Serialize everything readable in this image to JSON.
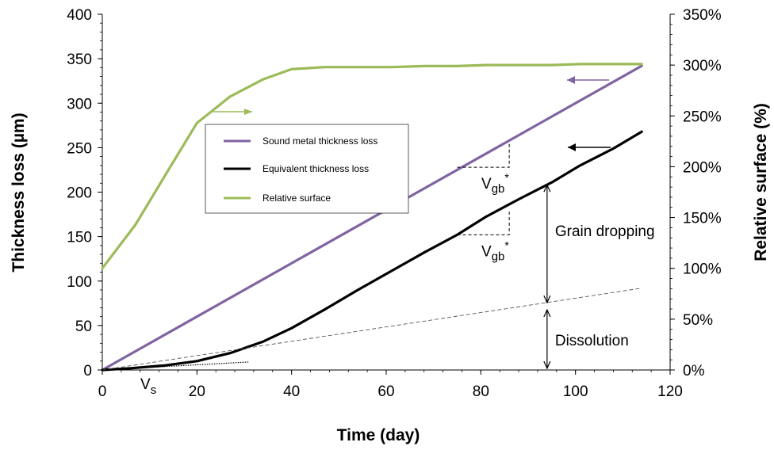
{
  "chart_data": {
    "type": "line",
    "xlabel": "Time (day)",
    "ylabel_left": "Thickness loss (µm)",
    "ylabel_right": "Relative surface (%)",
    "xlim": [
      0,
      120
    ],
    "ylim_left": [
      0,
      400
    ],
    "ylim_right": [
      0,
      350
    ],
    "x_ticks": [
      0,
      20,
      40,
      60,
      80,
      100,
      120
    ],
    "y_ticks_left": [
      0,
      50,
      100,
      150,
      200,
      250,
      300,
      350,
      400
    ],
    "y_ticks_right": [
      "0%",
      "50%",
      "100%",
      "150%",
      "200%",
      "250%",
      "300%",
      "350%"
    ],
    "grid": false,
    "legend_position": "center-left",
    "series": [
      {
        "name": "Sound metal thickness loss",
        "axis": "left",
        "color": "#8064a2",
        "x": [
          0,
          114
        ],
        "y": [
          0,
          342
        ]
      },
      {
        "name": "Equivalent thickness loss",
        "axis": "left",
        "color": "#000000",
        "x": [
          0,
          6,
          13,
          20,
          27,
          34,
          40,
          47,
          54,
          61,
          68,
          75,
          81,
          88,
          95,
          101,
          108,
          114
        ],
        "y": [
          0,
          2,
          5,
          10,
          19,
          32,
          47,
          68,
          90,
          111,
          132,
          152,
          172,
          192,
          211,
          230,
          249,
          268
        ]
      },
      {
        "name": "Relative surface",
        "axis": "right",
        "color": "#9bbb59",
        "x": [
          0,
          7,
          14,
          20,
          27,
          34,
          40,
          47,
          54,
          61,
          68,
          75,
          81,
          88,
          95,
          101,
          108,
          114
        ],
        "y": [
          100,
          143,
          197,
          243,
          269,
          286,
          296,
          298,
          298,
          298,
          299,
          299,
          300,
          300,
          300,
          301,
          301,
          301
        ]
      }
    ],
    "annotations": {
      "vs_label": "V",
      "vs_sub": "s",
      "vgb_label": "V",
      "vgb_sub": "gb",
      "vgb_sup": "*",
      "grain_dropping": "Grain dropping",
      "dissolution": "Dissolution",
      "dissolution_line": {
        "x": [
          0,
          114
        ],
        "y": [
          0,
          92
        ]
      },
      "vs_tangent": {
        "x": [
          0,
          31
        ],
        "y": [
          0,
          9
        ]
      },
      "vgb_upper": {
        "x": [
          75,
          86
        ],
        "y": [
          228,
          256
        ]
      },
      "vgb_lower": {
        "x": [
          75,
          86
        ],
        "y": [
          152,
          178
        ]
      },
      "bracket_x": 94,
      "bracket_y": [
        0,
        73,
        210
      ]
    }
  }
}
